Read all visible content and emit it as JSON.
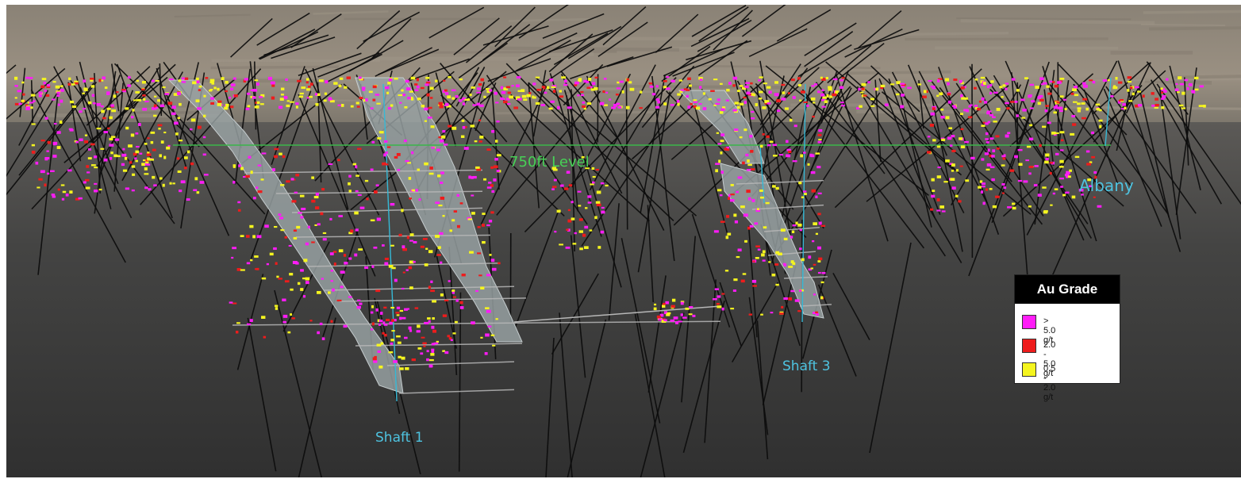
{
  "scene": {
    "labels": {
      "level": "750ft Level",
      "albany": "Albany",
      "shaft1": "Shaft 1",
      "shaft3": "Shaft 3"
    },
    "colors": {
      "sky": "#8f877a",
      "ground_top": "#5e5c58",
      "ground_bottom": "#323232",
      "vein": "#9aa3a5",
      "shaft": "#35b9d6",
      "level_line": "#3bb54a",
      "drillhole": "#0c0c0c",
      "drift": "#b7b7b7",
      "label_blue": "#4ec3e0",
      "label_green": "#47d156"
    }
  },
  "legend": {
    "title": "Au Grade",
    "items": [
      {
        "label": "> 5.0 g/t",
        "color": "#ff1cf7"
      },
      {
        "label": "2.0 - 5.0 g/t",
        "color": "#ee1c1c"
      },
      {
        "label": "0.5 - 2.0 g/t",
        "color": "#f5f51f"
      }
    ]
  }
}
